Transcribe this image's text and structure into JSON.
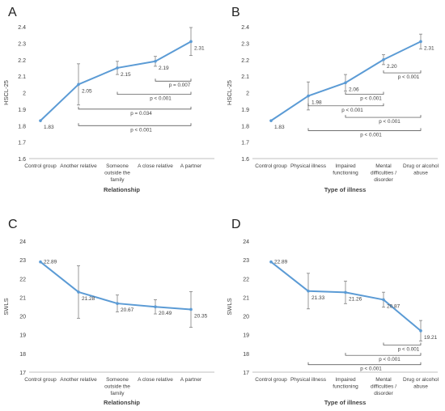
{
  "colors": {
    "line": "#5b9bd5",
    "axis": "#bfbfbf",
    "text": "#404040",
    "errbar": "#808080",
    "bracket": "#404040"
  },
  "chart_data": [
    {
      "panel": "A",
      "type": "line",
      "ylabel": "HSCL-25",
      "xlabel": "Relationship",
      "ylim": [
        1.6,
        2.4
      ],
      "yticks": [
        "1.6",
        "1.7",
        "1.8",
        "1.9",
        "2",
        "2.1",
        "2.2",
        "2.3",
        "2.4"
      ],
      "categories": [
        [
          "Control group"
        ],
        [
          "Another relative"
        ],
        [
          "Someone",
          "outside the",
          "family"
        ],
        [
          "A close relative"
        ],
        [
          "A partner"
        ]
      ],
      "values": [
        1.83,
        2.05,
        2.15,
        2.19,
        2.31
      ],
      "value_labels": [
        "1.83",
        "2.05",
        "2.15",
        "2.19",
        "2.31"
      ],
      "errors": [
        0,
        0.125,
        0.04,
        0.03,
        0.085
      ],
      "comparisons": [
        {
          "from": 3,
          "to": 4,
          "y": 2.07,
          "label": "p = 0.007"
        },
        {
          "from": 2,
          "to": 4,
          "y": 1.99,
          "label": "p < 0.001"
        },
        {
          "from": 1,
          "to": 4,
          "y": 1.9,
          "label": "p = 0.034"
        },
        {
          "from": 1,
          "to": 4,
          "y": 1.8,
          "label": "p < 0.001"
        }
      ]
    },
    {
      "panel": "B",
      "type": "line",
      "ylabel": "HSCL-25",
      "xlabel": "Type of illness",
      "ylim": [
        1.6,
        2.4
      ],
      "yticks": [
        "1.6",
        "1.7",
        "1.8",
        "1.9",
        "2",
        "2.1",
        "2.2",
        "2.3",
        "2.4"
      ],
      "categories": [
        [
          "Control group"
        ],
        [
          "Physical illness"
        ],
        [
          "Impaired",
          "functioning"
        ],
        [
          "Mental",
          "difficulties /",
          "disorder"
        ],
        [
          "Drug or alcohol",
          "abuse"
        ]
      ],
      "values": [
        1.83,
        1.98,
        2.06,
        2.2,
        2.31
      ],
      "value_labels": [
        "1.83",
        "1.98",
        "2.06",
        "2.20",
        "2.31"
      ],
      "errors": [
        0,
        0.085,
        0.05,
        0.03,
        0.045
      ],
      "comparisons": [
        {
          "from": 3,
          "to": 4,
          "y": 2.12,
          "label": "p < 0.001"
        },
        {
          "from": 2,
          "to": 3,
          "y": 1.99,
          "label": "p < 0.001"
        },
        {
          "from": 1,
          "to": 3,
          "y": 1.92,
          "label": "p < 0.001"
        },
        {
          "from": 2,
          "to": 4,
          "y": 1.85,
          "label": "p < 0.001"
        },
        {
          "from": 1,
          "to": 4,
          "y": 1.77,
          "label": "p < 0.001"
        }
      ]
    },
    {
      "panel": "C",
      "type": "line",
      "ylabel": "SWLS",
      "xlabel": "Relationship",
      "ylim": [
        17,
        24
      ],
      "yticks": [
        "17",
        "18",
        "19",
        "20",
        "21",
        "22",
        "23",
        "24"
      ],
      "categories": [
        [
          "Control group"
        ],
        [
          "Another relative"
        ],
        [
          "Someone",
          "outside the",
          "family"
        ],
        [
          "A close relative"
        ],
        [
          "A partner"
        ]
      ],
      "values": [
        22.89,
        21.28,
        20.67,
        20.49,
        20.35
      ],
      "value_labels": [
        "22.89",
        "21.28",
        "20.67",
        "20.49",
        "20.35"
      ],
      "errors": [
        0,
        1.4,
        0.45,
        0.38,
        0.95
      ],
      "comparisons": []
    },
    {
      "panel": "D",
      "type": "line",
      "ylabel": "SWLS",
      "xlabel": "Type of illness",
      "ylim": [
        17,
        24
      ],
      "yticks": [
        "17",
        "18",
        "19",
        "20",
        "21",
        "22",
        "23",
        "24"
      ],
      "categories": [
        [
          "Control group"
        ],
        [
          "Physical illness"
        ],
        [
          "Impaired",
          "functioning"
        ],
        [
          "Mental",
          "difficulties /",
          "disorder"
        ],
        [
          "Drug or alcohol",
          "abuse"
        ]
      ],
      "values": [
        22.89,
        21.33,
        21.26,
        20.87,
        19.21
      ],
      "value_labels": [
        "22.89",
        "21.33",
        "21.26",
        "20.87",
        "19.21"
      ],
      "errors": [
        0,
        0.95,
        0.6,
        0.4,
        0.55
      ],
      "comparisons": [
        {
          "from": 3,
          "to": 4,
          "y": 18.45,
          "label": "p < 0.001"
        },
        {
          "from": 2,
          "to": 4,
          "y": 17.9,
          "label": "p < 0.001"
        },
        {
          "from": 1,
          "to": 4,
          "y": 17.4,
          "label": "p < 0.001"
        }
      ]
    }
  ]
}
